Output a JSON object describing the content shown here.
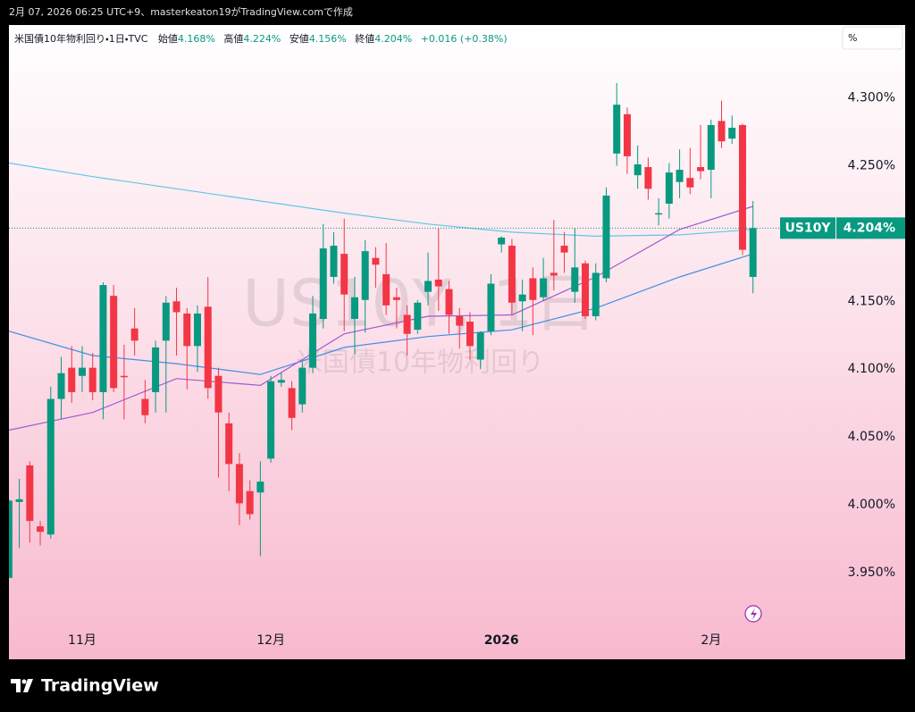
{
  "header": {
    "caption": "2月 07, 2026 06:25 UTC+9、masterkeaton19がTradingView.comで作成"
  },
  "toolbar": {
    "percent": "%"
  },
  "footer": {
    "logo": "TradingView"
  },
  "watermark": {
    "symbol": "US10Y, 1日",
    "name": "米国債10年物利回り"
  },
  "chart_data": {
    "type": "candlestick",
    "title": "米国債10年物利回り・1日・TVC",
    "ohlc_labels": [
      "始値",
      "高値",
      "安値",
      "終値"
    ],
    "ohlc_values": [
      {
        "value": 4.168,
        "label": "4.168%"
      },
      {
        "value": 4.224,
        "label": "4.224%"
      },
      {
        "value": 4.156,
        "label": "4.156%"
      },
      {
        "value": 4.204,
        "label": "4.204%"
      }
    ],
    "change": "+0.016 (+0.38%)",
    "symbol": "US10Y",
    "last_price": {
      "value": 4.204,
      "label": "4.204%"
    },
    "up_color": "#089981",
    "down_color": "#f23645",
    "categories": [
      null,
      null,
      null,
      null,
      null,
      null,
      null,
      "11月",
      null,
      null,
      null,
      null,
      null,
      null,
      null,
      null,
      null,
      null,
      null,
      null,
      null,
      null,
      null,
      null,
      null,
      "12月",
      null,
      null,
      null,
      null,
      null,
      null,
      null,
      null,
      null,
      null,
      null,
      null,
      null,
      null,
      null,
      null,
      null,
      null,
      null,
      null,
      null,
      "2026",
      null,
      null,
      null,
      null,
      null,
      null,
      null,
      null,
      null,
      null,
      null,
      null,
      null,
      null,
      null,
      null,
      null,
      null,
      null,
      "2月",
      null,
      null,
      null,
      null
    ],
    "open": [
      3.946,
      4.002,
      4.029,
      3.984,
      3.978,
      4.078,
      4.101,
      4.095,
      4.101,
      4.083,
      4.154,
      4.095,
      4.13,
      4.078,
      4.083,
      4.121,
      4.15,
      4.141,
      4.117,
      4.146,
      4.095,
      4.06,
      4.03,
      4.01,
      4.009,
      4.034,
      4.09,
      4.086,
      4.074,
      4.101,
      4.137,
      4.168,
      4.185,
      4.137,
      4.151,
      4.182,
      4.17,
      4.153,
      4.14,
      4.129,
      4.157,
      4.166,
      4.159,
      4.139,
      4.135,
      4.107,
      4.128,
      4.192,
      4.191,
      4.15,
      4.167,
      4.153,
      4.171,
      4.191,
      4.157,
      4.178,
      4.139,
      4.167,
      4.259,
      4.288,
      4.243,
      4.249,
      4.214,
      4.222,
      4.238,
      4.241,
      4.249,
      4.247,
      4.283,
      4.27,
      4.28,
      4.168
    ],
    "high": [
      4.004,
      4.019,
      4.032,
      3.988,
      4.087,
      4.109,
      4.117,
      4.117,
      4.112,
      4.164,
      4.162,
      4.118,
      4.145,
      4.092,
      4.121,
      4.154,
      4.16,
      4.145,
      4.147,
      4.168,
      4.101,
      4.068,
      4.038,
      4.018,
      4.032,
      4.095,
      4.097,
      4.091,
      4.106,
      4.154,
      4.207,
      4.201,
      4.211,
      4.168,
      4.195,
      4.19,
      4.193,
      4.16,
      4.147,
      4.151,
      4.186,
      4.204,
      4.165,
      4.145,
      4.142,
      4.128,
      4.17,
      4.198,
      4.196,
      4.166,
      4.175,
      4.182,
      4.21,
      4.201,
      4.204,
      4.18,
      4.178,
      4.234,
      4.311,
      4.293,
      4.265,
      4.256,
      4.226,
      4.252,
      4.262,
      4.263,
      4.28,
      4.284,
      4.298,
      4.287,
      4.281,
      4.224
    ],
    "low": [
      3.946,
      3.968,
      3.972,
      3.97,
      3.975,
      4.063,
      4.075,
      4.083,
      4.077,
      4.063,
      4.083,
      4.063,
      4.11,
      4.06,
      4.068,
      4.068,
      4.11,
      4.085,
      4.098,
      4.078,
      4.02,
      4.01,
      3.985,
      3.989,
      3.962,
      4.031,
      4.087,
      4.055,
      4.068,
      4.097,
      4.13,
      4.163,
      4.128,
      4.111,
      4.127,
      4.16,
      4.14,
      4.13,
      4.11,
      4.126,
      4.147,
      4.143,
      4.126,
      4.115,
      4.107,
      4.1,
      4.125,
      4.186,
      4.14,
      4.128,
      4.125,
      4.15,
      4.158,
      4.171,
      4.149,
      4.137,
      4.136,
      4.164,
      4.25,
      4.244,
      4.233,
      4.225,
      4.206,
      4.211,
      4.226,
      4.229,
      4.24,
      4.226,
      4.263,
      4.266,
      4.184,
      4.156
    ],
    "close": [
      4.003,
      4.004,
      3.988,
      3.98,
      4.078,
      4.097,
      4.083,
      4.101,
      4.083,
      4.162,
      4.086,
      4.094,
      4.121,
      4.066,
      4.116,
      4.149,
      4.142,
      4.117,
      4.141,
      4.086,
      4.068,
      4.03,
      4.001,
      3.993,
      4.017,
      4.091,
      4.092,
      4.064,
      4.101,
      4.141,
      4.189,
      4.191,
      4.155,
      4.153,
      4.187,
      4.177,
      4.147,
      4.151,
      4.126,
      4.149,
      4.165,
      4.161,
      4.14,
      4.132,
      4.117,
      4.127,
      4.163,
      4.197,
      4.149,
      4.155,
      4.151,
      4.167,
      4.169,
      4.186,
      4.175,
      4.139,
      4.171,
      4.228,
      4.295,
      4.257,
      4.251,
      4.233,
      4.215,
      4.245,
      4.247,
      4.234,
      4.246,
      4.28,
      4.268,
      4.278,
      4.188,
      4.204
    ],
    "series": [
      {
        "color": "#5ec8e5",
        "x": [
          0,
          8,
          16,
          24,
          32,
          40,
          48,
          56,
          64,
          71
        ],
        "values": [
          4.252,
          4.242,
          4.233,
          4.224,
          4.215,
          4.207,
          4.201,
          4.198,
          4.199,
          4.203
        ]
      },
      {
        "color": "#3f8fe8",
        "x": [
          0,
          8,
          16,
          24,
          32,
          40,
          48,
          56,
          64,
          71
        ],
        "values": [
          4.128,
          4.11,
          4.104,
          4.096,
          4.116,
          4.124,
          4.129,
          4.145,
          4.168,
          4.185
        ]
      },
      {
        "color": "#a25ad0",
        "x": [
          0,
          8,
          16,
          24,
          32,
          40,
          48,
          56,
          64,
          71
        ],
        "values": [
          4.055,
          4.068,
          4.093,
          4.088,
          4.126,
          4.139,
          4.14,
          4.168,
          4.203,
          4.22
        ]
      }
    ],
    "ylim": [
      3.911,
      4.336
    ],
    "yticks": [
      {
        "value": 3.95,
        "label": "3.950%"
      },
      {
        "value": 4.0,
        "label": "4.000%"
      },
      {
        "value": 4.05,
        "label": "4.050%"
      },
      {
        "value": 4.1,
        "label": "4.100%"
      },
      {
        "value": 4.15,
        "label": "4.150%"
      },
      {
        "value": 4.2,
        "label": "4.200%"
      },
      {
        "value": 4.25,
        "label": "4.250%"
      },
      {
        "value": 4.3,
        "label": "4.300%"
      }
    ]
  }
}
